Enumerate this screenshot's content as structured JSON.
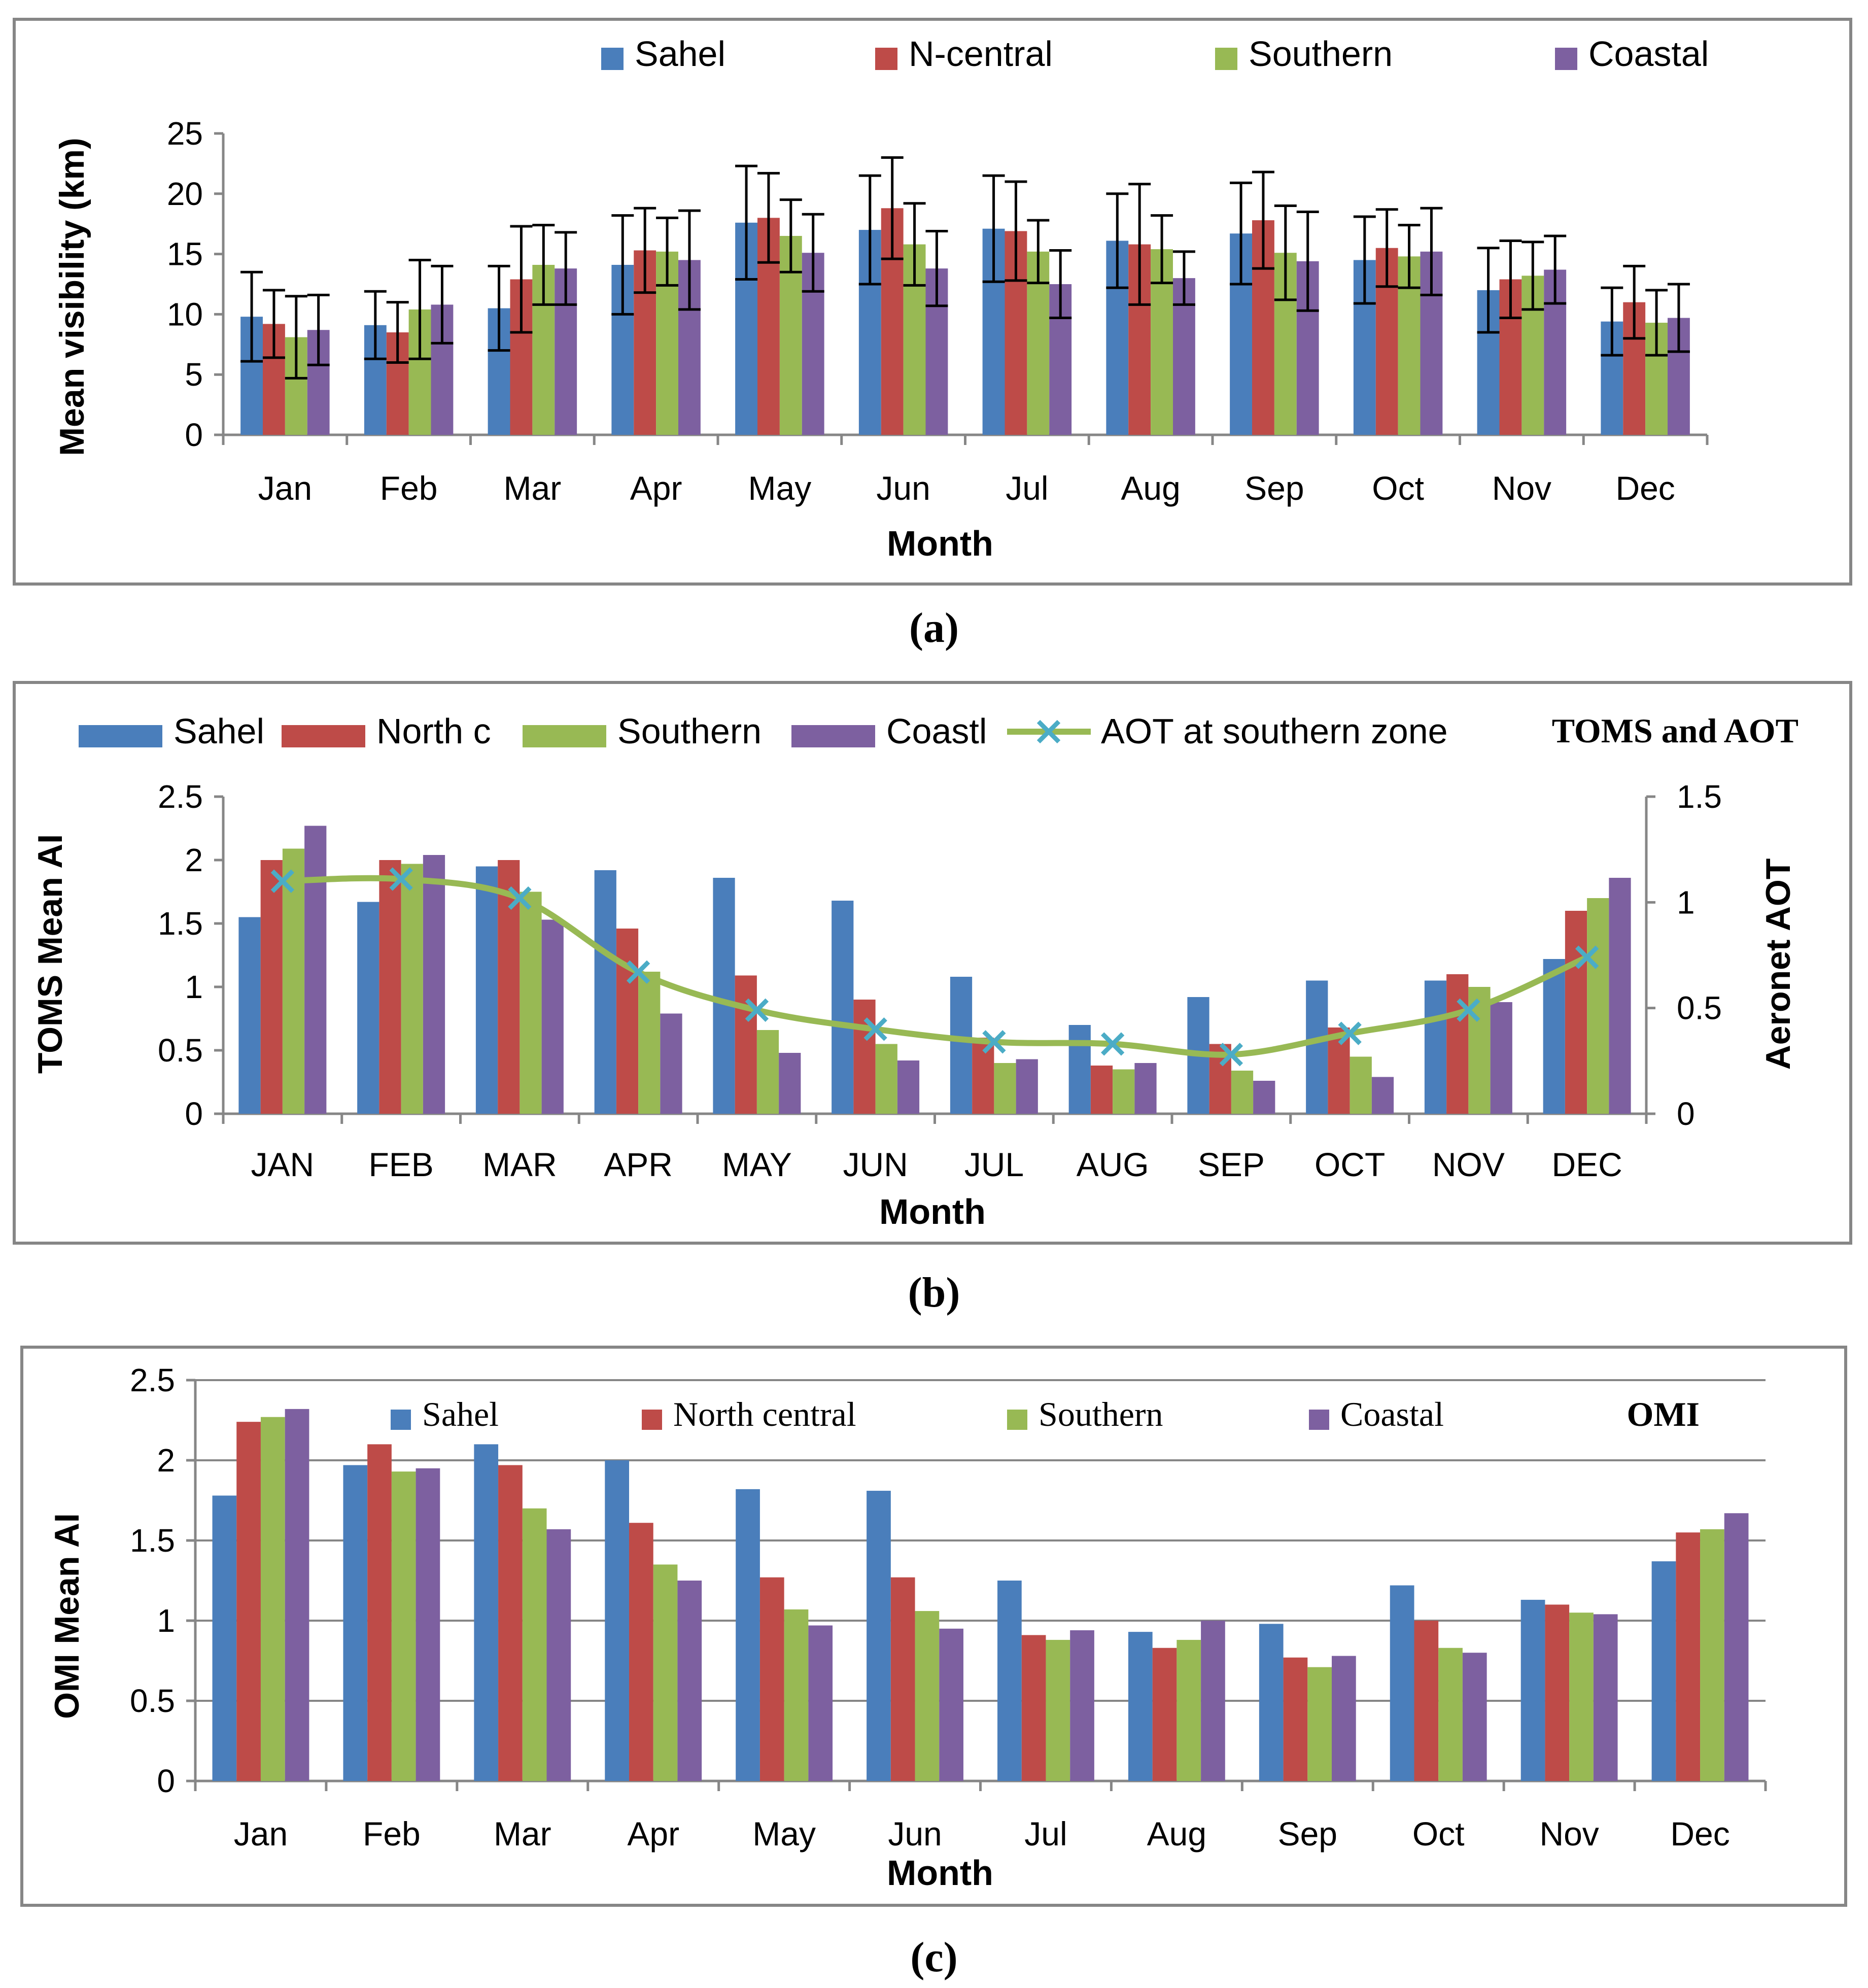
{
  "colors": {
    "Sahel": "#4a7ebb",
    "NorthCentral": "#be4b48",
    "Southern": "#98b954",
    "Coastal": "#7d60a0",
    "aot_line": "#98b954",
    "aot_marker": "#4bacc6",
    "axis": "#868686",
    "frame": "#868686"
  },
  "chart_data": [
    {
      "type": "bar",
      "caption": "(a)",
      "title": "",
      "xlabel": "Month",
      "ylabel": "Mean visibility (km)",
      "ylim": [
        0,
        25
      ],
      "yticks": [
        "0",
        "5",
        "10",
        "15",
        "20",
        "25"
      ],
      "gridlines": false,
      "legend_position": "top",
      "categories": [
        "Jan",
        "Feb",
        "Mar",
        "Apr",
        "May",
        "Jun",
        "Jul",
        "Aug",
        "Sep",
        "Oct",
        "Nov",
        "Dec"
      ],
      "series": [
        {
          "name": "Sahel",
          "color_key": "Sahel",
          "values": [
            9.8,
            9.1,
            10.5,
            14.1,
            17.6,
            17.0,
            17.1,
            16.1,
            16.7,
            14.5,
            12.0,
            9.4
          ],
          "errors": [
            3.7,
            2.8,
            3.5,
            4.1,
            4.7,
            4.5,
            4.4,
            3.9,
            4.2,
            3.6,
            3.5,
            2.8
          ]
        },
        {
          "name": "N-central",
          "color_key": "NorthCentral",
          "values": [
            9.2,
            8.5,
            12.9,
            15.3,
            18.0,
            18.8,
            16.9,
            15.8,
            17.8,
            15.5,
            12.9,
            11.0
          ],
          "errors": [
            2.8,
            2.5,
            4.4,
            3.5,
            3.7,
            4.2,
            4.1,
            5.0,
            4.0,
            3.2,
            3.2,
            3.0
          ]
        },
        {
          "name": "Southern",
          "color_key": "Southern",
          "values": [
            8.1,
            10.4,
            14.1,
            15.2,
            16.5,
            15.8,
            15.2,
            15.4,
            15.1,
            14.8,
            13.2,
            9.3
          ],
          "errors": [
            3.4,
            4.1,
            3.3,
            2.8,
            3.0,
            3.4,
            2.6,
            2.8,
            3.9,
            2.6,
            2.8,
            2.7
          ]
        },
        {
          "name": "Coastal",
          "color_key": "Coastal",
          "values": [
            8.7,
            10.8,
            13.8,
            14.5,
            15.1,
            13.8,
            12.5,
            13.0,
            14.4,
            15.2,
            13.7,
            9.7
          ],
          "errors": [
            2.9,
            3.2,
            3.0,
            4.1,
            3.2,
            3.1,
            2.8,
            2.2,
            4.1,
            3.6,
            2.8,
            2.8
          ]
        }
      ]
    },
    {
      "type": "bar",
      "caption": "(b)",
      "title": "TOMS and AOT",
      "xlabel": "Month",
      "ylabel": "TOMS Mean AI",
      "ylabel_right": "Aeronet AOT",
      "ylim": [
        0,
        2.5
      ],
      "ylim_right": [
        0,
        1.5
      ],
      "yticks": [
        "0",
        "0.5",
        "1",
        "1.5",
        "2",
        "2.5"
      ],
      "yticks_right": [
        "0",
        "0.5",
        "1",
        "1.5"
      ],
      "gridlines": false,
      "legend_position": "top",
      "categories": [
        "JAN",
        "FEB",
        "MAR",
        "APR",
        "MAY",
        "JUN",
        "JUL",
        "AUG",
        "SEP",
        "OCT",
        "NOV",
        "DEC"
      ],
      "series": [
        {
          "name": "Sahel",
          "color_key": "Sahel",
          "values": [
            1.55,
            1.67,
            1.95,
            1.92,
            1.86,
            1.68,
            1.08,
            0.7,
            0.92,
            1.05,
            1.05,
            1.22
          ]
        },
        {
          "name": "North c",
          "color_key": "NorthCentral",
          "values": [
            2.0,
            2.0,
            2.0,
            1.46,
            1.09,
            0.9,
            0.6,
            0.38,
            0.55,
            0.68,
            1.1,
            1.6
          ]
        },
        {
          "name": "Southern",
          "color_key": "Southern",
          "values": [
            2.09,
            1.97,
            1.75,
            1.12,
            0.66,
            0.55,
            0.4,
            0.35,
            0.34,
            0.45,
            1.0,
            1.7
          ]
        },
        {
          "name": "Coastl",
          "color_key": "Coastal",
          "values": [
            2.27,
            2.04,
            1.53,
            0.79,
            0.48,
            0.42,
            0.43,
            0.4,
            0.26,
            0.29,
            0.88,
            1.86
          ]
        }
      ],
      "line_series": {
        "name": "AOT at southern zone",
        "axis": "right",
        "values": [
          1.1,
          1.11,
          1.02,
          0.67,
          0.49,
          0.4,
          0.34,
          0.33,
          0.28,
          0.38,
          0.49,
          0.74
        ]
      }
    },
    {
      "type": "bar",
      "caption": "(c)",
      "title": "OMI",
      "xlabel": "Month",
      "ylabel": "OMI Mean AI",
      "ylim": [
        0,
        2.5
      ],
      "yticks": [
        "0",
        "0.5",
        "1",
        "1.5",
        "2",
        "2.5"
      ],
      "gridlines": true,
      "legend_position": "top",
      "categories": [
        "Jan",
        "Feb",
        "Mar",
        "Apr",
        "May",
        "Jun",
        "Jul",
        "Aug",
        "Sep",
        "Oct",
        "Nov",
        "Dec"
      ],
      "series": [
        {
          "name": "Sahel",
          "color_key": "Sahel",
          "values": [
            1.78,
            1.97,
            2.1,
            2.0,
            1.82,
            1.81,
            1.25,
            0.93,
            0.98,
            1.22,
            1.13,
            1.37
          ]
        },
        {
          "name": "North central",
          "color_key": "NorthCentral",
          "values": [
            2.24,
            2.1,
            1.97,
            1.61,
            1.27,
            1.27,
            0.91,
            0.83,
            0.77,
            1.0,
            1.1,
            1.55
          ]
        },
        {
          "name": "Southern",
          "color_key": "Southern",
          "values": [
            2.27,
            1.93,
            1.7,
            1.35,
            1.07,
            1.06,
            0.88,
            0.88,
            0.71,
            0.83,
            1.05,
            1.57
          ]
        },
        {
          "name": "Coastal",
          "color_key": "Coastal",
          "values": [
            2.32,
            1.95,
            1.57,
            1.25,
            0.97,
            0.95,
            0.94,
            1.0,
            0.78,
            0.8,
            1.04,
            1.67
          ]
        }
      ]
    }
  ]
}
